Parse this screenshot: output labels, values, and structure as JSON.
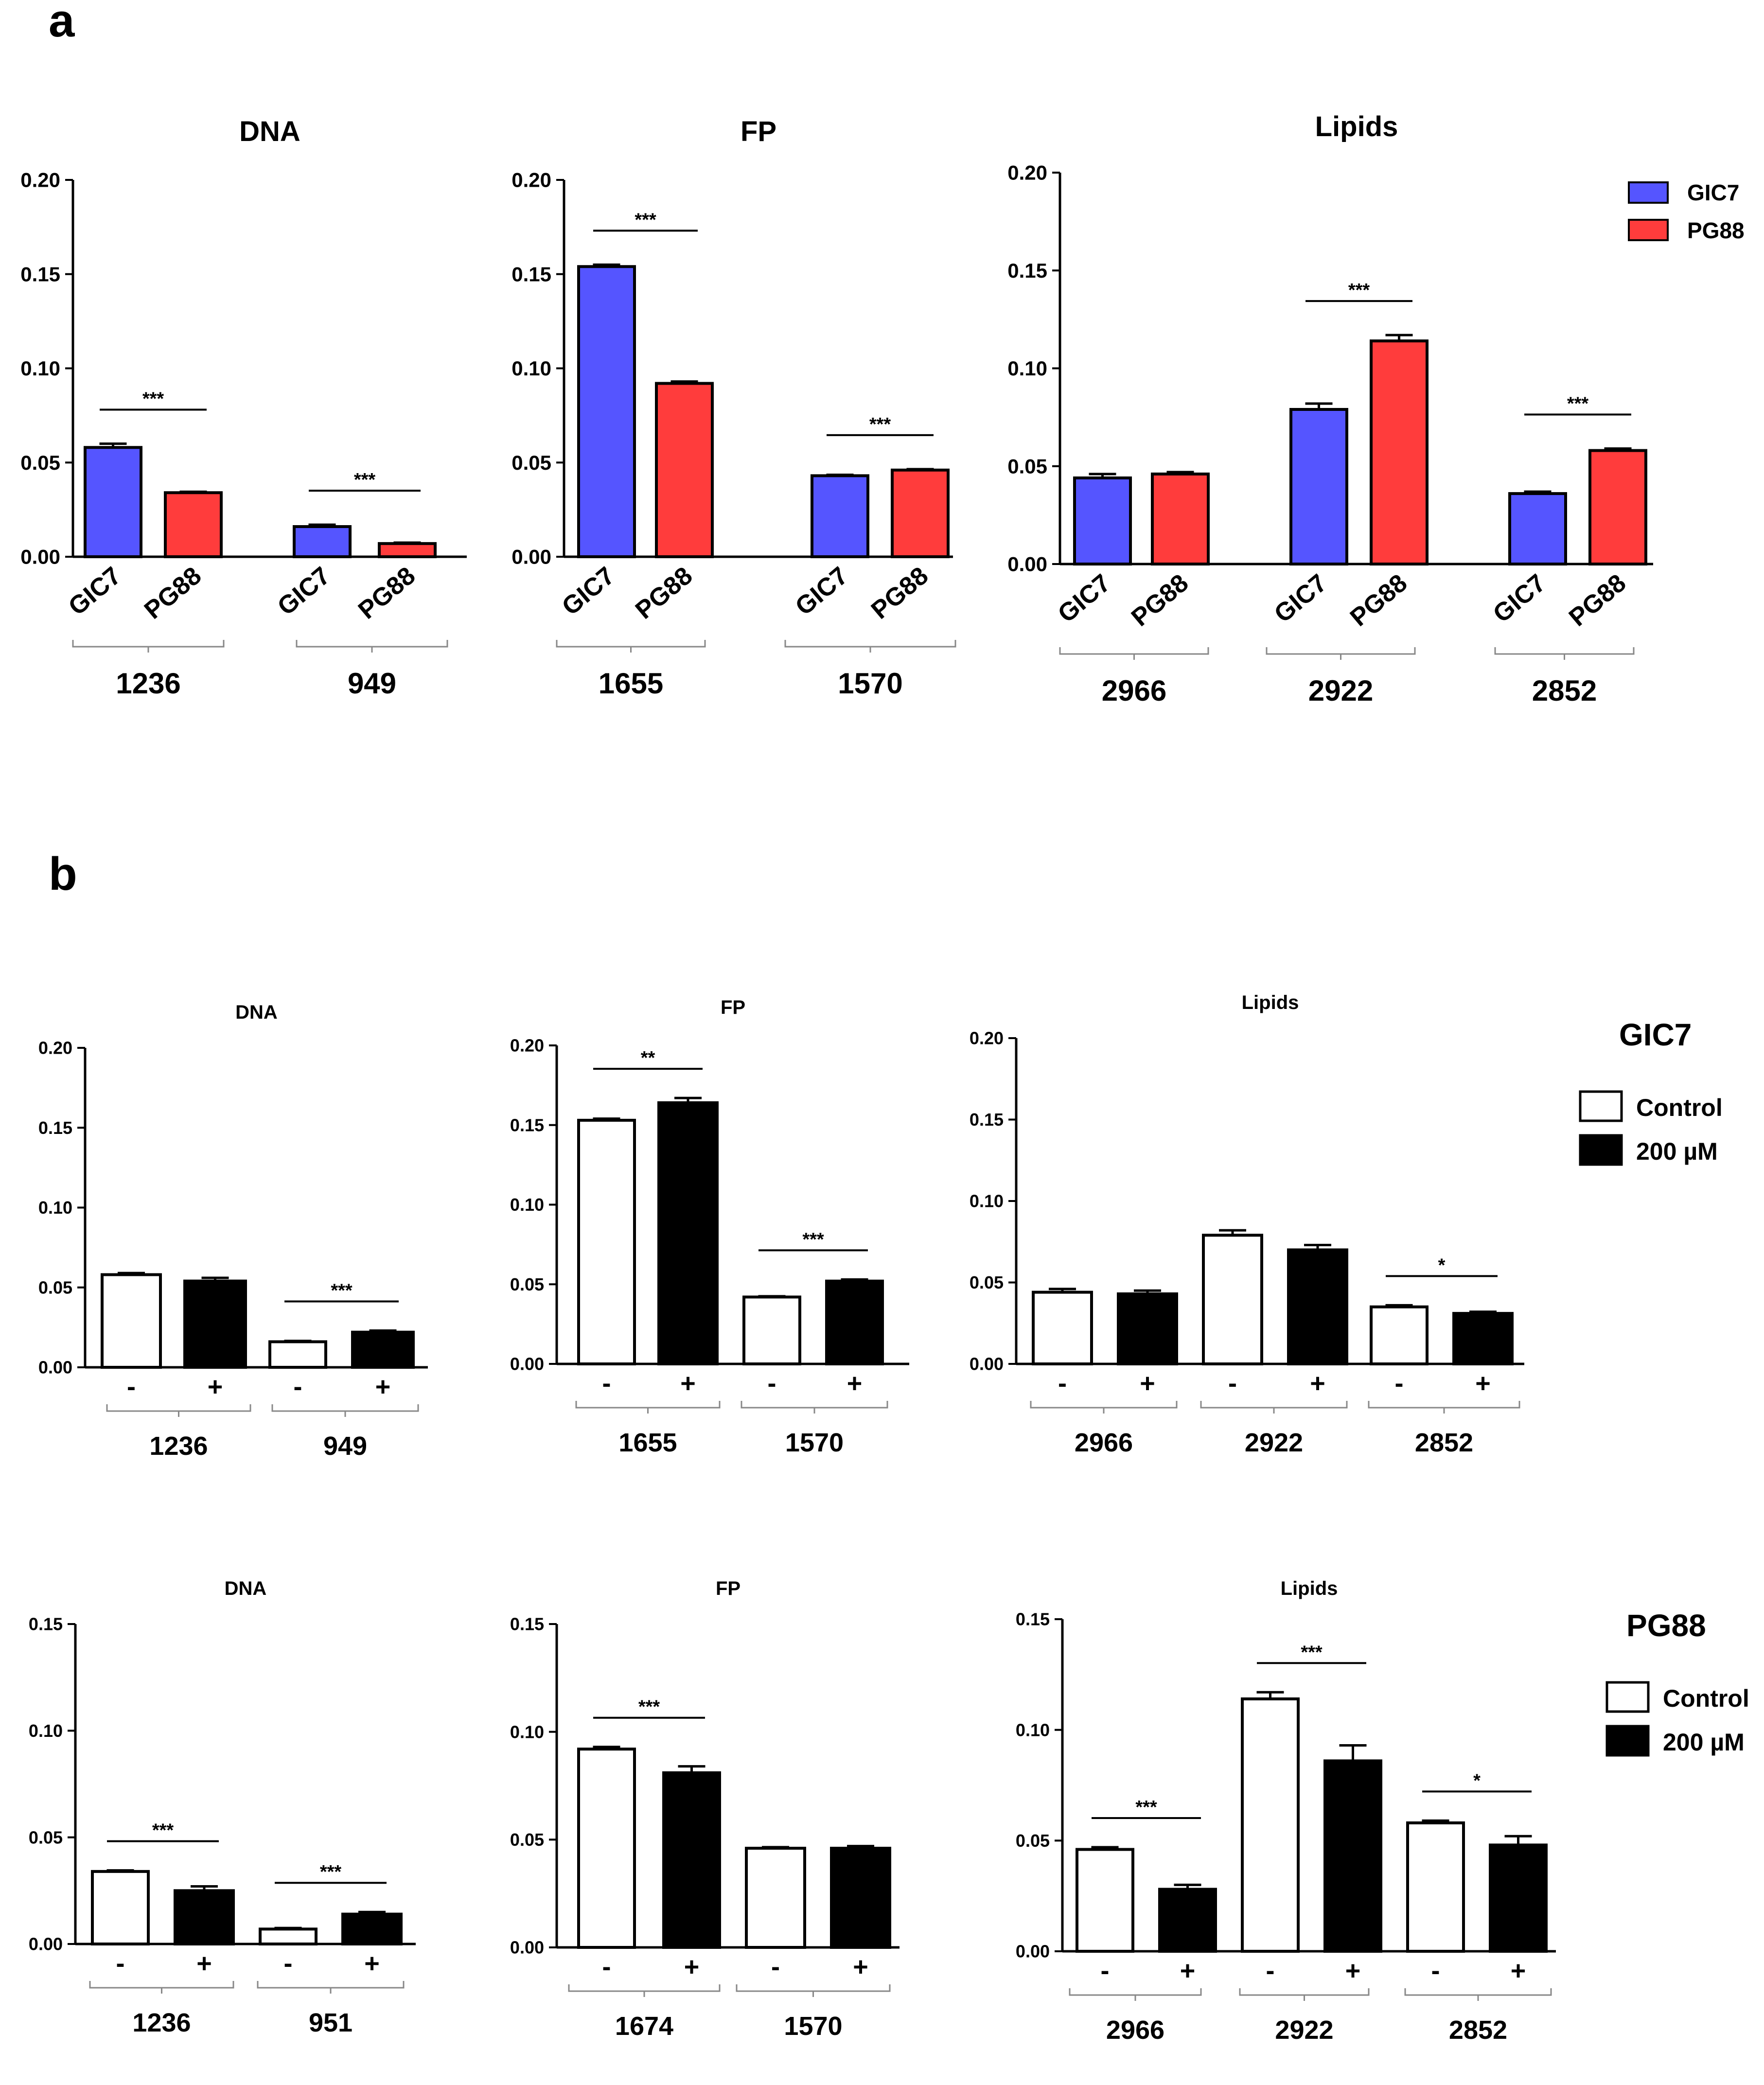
{
  "figure": {
    "panel_a_label": "a",
    "panel_b_label": "b"
  },
  "colors": {
    "gic7": "#5555ff",
    "pg88": "#ff3c3c",
    "control": "#ffffff",
    "treated": "#000000",
    "axis": "#000000"
  },
  "legends": {
    "a": {
      "items": [
        {
          "label": "GIC7",
          "color": "#5555ff"
        },
        {
          "label": "PG88",
          "color": "#ff3c3c"
        }
      ]
    },
    "b_gic7": {
      "title": "GIC7",
      "items": [
        {
          "label": "Control",
          "color": "#ffffff"
        },
        {
          "label": "200 µM",
          "color": "#000000"
        }
      ]
    },
    "b_pg88": {
      "title": "PG88",
      "items": [
        {
          "label": "Control",
          "color": "#ffffff"
        },
        {
          "label": "200 µM",
          "color": "#000000"
        }
      ]
    }
  },
  "chart_data": [
    {
      "id": "a-dna",
      "panel": "a",
      "type": "bar",
      "title": "DNA",
      "ylim": [
        0,
        0.2
      ],
      "yticks": [
        "0.00",
        "0.05",
        "0.10",
        "0.15",
        "0.20"
      ],
      "bar_labels": [
        "GIC7",
        "PG88"
      ],
      "groups": [
        {
          "label": "1236",
          "bars": [
            {
              "label": "GIC7",
              "value": 0.058,
              "err": 0.002,
              "color": "gic7"
            },
            {
              "label": "PG88",
              "value": 0.034,
              "err": 0.0005,
              "color": "pg88"
            }
          ],
          "sig": "***"
        },
        {
          "label": "949",
          "bars": [
            {
              "label": "GIC7",
              "value": 0.016,
              "err": 0.001,
              "color": "gic7"
            },
            {
              "label": "PG88",
              "value": 0.007,
              "err": 0.0005,
              "color": "pg88"
            }
          ],
          "sig": "***"
        }
      ]
    },
    {
      "id": "a-fp",
      "panel": "a",
      "type": "bar",
      "title": "FP",
      "ylim": [
        0,
        0.2
      ],
      "yticks": [
        "0.00",
        "0.05",
        "0.10",
        "0.15",
        "0.20"
      ],
      "bar_labels": [
        "GIC7",
        "PG88"
      ],
      "groups": [
        {
          "label": "1655",
          "bars": [
            {
              "label": "GIC7",
              "value": 0.154,
              "err": 0.001,
              "color": "gic7"
            },
            {
              "label": "PG88",
              "value": 0.092,
              "err": 0.001,
              "color": "pg88"
            }
          ],
          "sig": "***"
        },
        {
          "label": "1570",
          "bars": [
            {
              "label": "GIC7",
              "value": 0.043,
              "err": 0.0005,
              "color": "gic7"
            },
            {
              "label": "PG88",
              "value": 0.046,
              "err": 0.0005,
              "color": "pg88"
            }
          ],
          "sig": "***"
        }
      ]
    },
    {
      "id": "a-lipids",
      "panel": "a",
      "type": "bar",
      "title": "Lipids",
      "ylim": [
        0,
        0.2
      ],
      "yticks": [
        "0.00",
        "0.05",
        "0.10",
        "0.15",
        "0.20"
      ],
      "bar_labels": [
        "GIC7",
        "PG88"
      ],
      "groups": [
        {
          "label": "2966",
          "bars": [
            {
              "label": "GIC7",
              "value": 0.044,
              "err": 0.002,
              "color": "gic7"
            },
            {
              "label": "PG88",
              "value": 0.046,
              "err": 0.001,
              "color": "pg88"
            }
          ],
          "sig": ""
        },
        {
          "label": "2922",
          "bars": [
            {
              "label": "GIC7",
              "value": 0.079,
              "err": 0.003,
              "color": "gic7"
            },
            {
              "label": "PG88",
              "value": 0.114,
              "err": 0.003,
              "color": "pg88"
            }
          ],
          "sig": "***"
        },
        {
          "label": "2852",
          "bars": [
            {
              "label": "GIC7",
              "value": 0.036,
              "err": 0.001,
              "color": "gic7"
            },
            {
              "label": "PG88",
              "value": 0.058,
              "err": 0.001,
              "color": "pg88"
            }
          ],
          "sig": "***"
        }
      ]
    },
    {
      "id": "b-gic7-dna",
      "panel": "b",
      "type": "bar",
      "title": "DNA",
      "ylim": [
        0,
        0.2
      ],
      "yticks": [
        "0.00",
        "0.05",
        "0.10",
        "0.15",
        "0.20"
      ],
      "bar_labels": [
        "-",
        "+"
      ],
      "groups": [
        {
          "label": "1236",
          "bars": [
            {
              "label": "-",
              "value": 0.058,
              "err": 0.001,
              "color": "control"
            },
            {
              "label": "+",
              "value": 0.054,
              "err": 0.002,
              "color": "treated"
            }
          ],
          "sig": ""
        },
        {
          "label": "949",
          "bars": [
            {
              "label": "-",
              "value": 0.016,
              "err": 0.0005,
              "color": "control"
            },
            {
              "label": "+",
              "value": 0.022,
              "err": 0.001,
              "color": "treated"
            }
          ],
          "sig": "***"
        }
      ]
    },
    {
      "id": "b-gic7-fp",
      "panel": "b",
      "type": "bar",
      "title": "FP",
      "ylim": [
        0,
        0.2
      ],
      "yticks": [
        "0.00",
        "0.05",
        "0.10",
        "0.15",
        "0.20"
      ],
      "bar_labels": [
        "-",
        "+"
      ],
      "groups": [
        {
          "label": "1655",
          "bars": [
            {
              "label": "-",
              "value": 0.153,
              "err": 0.001,
              "color": "control"
            },
            {
              "label": "+",
              "value": 0.164,
              "err": 0.003,
              "color": "treated"
            }
          ],
          "sig": "**"
        },
        {
          "label": "1570",
          "bars": [
            {
              "label": "-",
              "value": 0.042,
              "err": 0.0005,
              "color": "control"
            },
            {
              "label": "+",
              "value": 0.052,
              "err": 0.001,
              "color": "treated"
            }
          ],
          "sig": "***"
        }
      ]
    },
    {
      "id": "b-gic7-lipids",
      "panel": "b",
      "type": "bar",
      "title": "Lipids",
      "ylim": [
        0,
        0.2
      ],
      "yticks": [
        "0.00",
        "0.05",
        "0.10",
        "0.15",
        "0.20"
      ],
      "bar_labels": [
        "-",
        "+"
      ],
      "groups": [
        {
          "label": "2966",
          "bars": [
            {
              "label": "-",
              "value": 0.044,
              "err": 0.002,
              "color": "control"
            },
            {
              "label": "+",
              "value": 0.043,
              "err": 0.002,
              "color": "treated"
            }
          ],
          "sig": ""
        },
        {
          "label": "2922",
          "bars": [
            {
              "label": "-",
              "value": 0.079,
              "err": 0.003,
              "color": "control"
            },
            {
              "label": "+",
              "value": 0.07,
              "err": 0.003,
              "color": "treated"
            }
          ],
          "sig": ""
        },
        {
          "label": "2852",
          "bars": [
            {
              "label": "-",
              "value": 0.035,
              "err": 0.001,
              "color": "control"
            },
            {
              "label": "+",
              "value": 0.031,
              "err": 0.001,
              "color": "treated"
            }
          ],
          "sig": "*"
        }
      ]
    },
    {
      "id": "b-pg88-dna",
      "panel": "b",
      "type": "bar",
      "title": "DNA",
      "ylim": [
        0,
        0.15
      ],
      "yticks": [
        "0.00",
        "0.05",
        "0.10",
        "0.15"
      ],
      "bar_labels": [
        "-",
        "+"
      ],
      "groups": [
        {
          "label": "1236",
          "bars": [
            {
              "label": "-",
              "value": 0.034,
              "err": 0.0005,
              "color": "control"
            },
            {
              "label": "+",
              "value": 0.025,
              "err": 0.002,
              "color": "treated"
            }
          ],
          "sig": "***"
        },
        {
          "label": "951",
          "bars": [
            {
              "label": "-",
              "value": 0.007,
              "err": 0.0005,
              "color": "control"
            },
            {
              "label": "+",
              "value": 0.014,
              "err": 0.001,
              "color": "treated"
            }
          ],
          "sig": "***"
        }
      ]
    },
    {
      "id": "b-pg88-fp",
      "panel": "b",
      "type": "bar",
      "title": "FP",
      "ylim": [
        0,
        0.15
      ],
      "yticks": [
        "0.00",
        "0.05",
        "0.10",
        "0.15"
      ],
      "bar_labels": [
        "-",
        "+"
      ],
      "groups": [
        {
          "label": "1674",
          "bars": [
            {
              "label": "-",
              "value": 0.092,
              "err": 0.001,
              "color": "control"
            },
            {
              "label": "+",
              "value": 0.081,
              "err": 0.003,
              "color": "treated"
            }
          ],
          "sig": "***"
        },
        {
          "label": "1570",
          "bars": [
            {
              "label": "-",
              "value": 0.046,
              "err": 0.0005,
              "color": "control"
            },
            {
              "label": "+",
              "value": 0.046,
              "err": 0.001,
              "color": "treated"
            }
          ],
          "sig": ""
        }
      ]
    },
    {
      "id": "b-pg88-lipids",
      "panel": "b",
      "type": "bar",
      "title": "Lipids",
      "ylim": [
        0,
        0.15
      ],
      "yticks": [
        "0.00",
        "0.05",
        "0.10",
        "0.15"
      ],
      "bar_labels": [
        "-",
        "+"
      ],
      "groups": [
        {
          "label": "2966",
          "bars": [
            {
              "label": "-",
              "value": 0.046,
              "err": 0.001,
              "color": "control"
            },
            {
              "label": "+",
              "value": 0.028,
              "err": 0.002,
              "color": "treated"
            }
          ],
          "sig": "***"
        },
        {
          "label": "2922",
          "bars": [
            {
              "label": "-",
              "value": 0.114,
              "err": 0.003,
              "color": "control"
            },
            {
              "label": "+",
              "value": 0.086,
              "err": 0.007,
              "color": "treated"
            }
          ],
          "sig": "***"
        },
        {
          "label": "2852",
          "bars": [
            {
              "label": "-",
              "value": 0.058,
              "err": 0.001,
              "color": "control"
            },
            {
              "label": "+",
              "value": 0.048,
              "err": 0.004,
              "color": "treated"
            }
          ],
          "sig": "*"
        }
      ]
    }
  ]
}
